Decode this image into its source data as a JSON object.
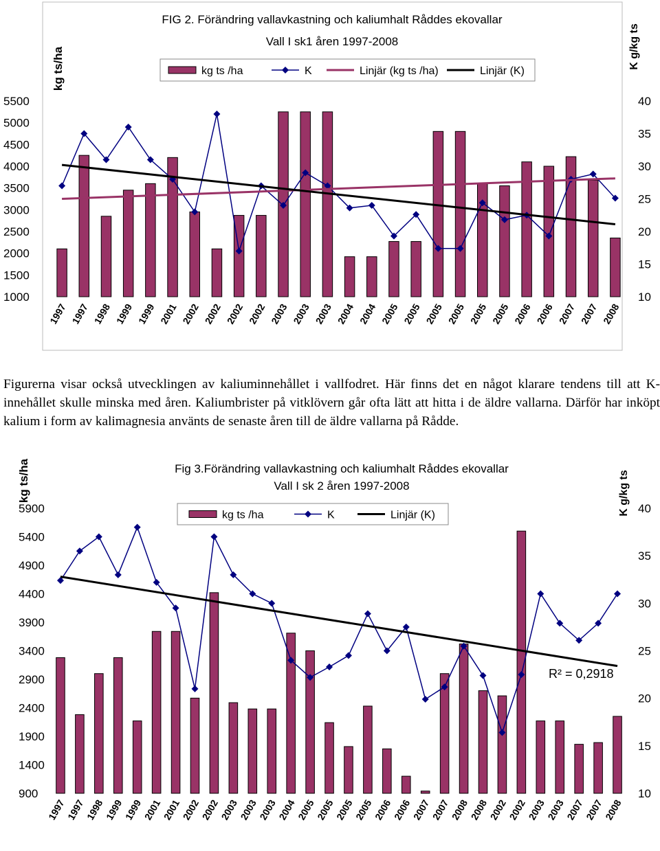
{
  "chart_data": [
    {
      "type": "bar",
      "title": "FIG 2. Förändring vallavkastning och kaliumhalt Råddes ekovallar",
      "subtitle": "Vall I sk1 åren 1997-2008",
      "y_label": "kg ts/ha",
      "y2_label": "K g/kg ts",
      "legend": "top",
      "categories": [
        "1997",
        "1997",
        "1998",
        "1999",
        "1999",
        "2001",
        "2002",
        "2002",
        "2002",
        "2002",
        "2003",
        "2003",
        "2003",
        "2004",
        "2004",
        "2005",
        "2005",
        "2005",
        "2005",
        "2005",
        "2005",
        "2006",
        "2006",
        "2007",
        "2007",
        "2008"
      ],
      "series": [
        {
          "name": "kg ts /ha",
          "color": "#993366",
          "values": [
            2100,
            4250,
            2850,
            3450,
            3600,
            4200,
            2950,
            2100,
            2870,
            2870,
            5250,
            5250,
            5250,
            1920,
            1920,
            2270,
            2270,
            4800,
            4800,
            3600,
            3550,
            4100,
            4000,
            4220,
            3680,
            2350
          ]
        },
        {
          "name": "K",
          "color": "#000080",
          "axis": "y2",
          "marker": "diamond",
          "values": [
            27,
            35,
            31,
            36,
            31,
            28,
            23,
            38,
            17,
            27,
            24,
            29,
            27,
            23.6,
            24,
            19.3,
            22.6,
            17.4,
            17.4,
            24.4,
            21.8,
            22.5,
            19.3,
            28,
            28.8,
            25.1
          ]
        }
      ],
      "trendlines": [
        {
          "name": "Linjär (kg ts /ha)",
          "color": "#993366",
          "values": [
            3250,
            3720
          ]
        },
        {
          "name": "Linjär (K)",
          "color": "#000000",
          "axis": "y2",
          "values": [
            30.2,
            21.1
          ]
        }
      ],
      "ylim": [
        1000,
        5500
      ],
      "yticks": [
        1000,
        1500,
        2000,
        2500,
        3000,
        3500,
        4000,
        4500,
        5000,
        5500
      ],
      "y2lim": [
        10,
        40
      ],
      "y2ticks": [
        10,
        15,
        20,
        25,
        30,
        35,
        40
      ]
    },
    {
      "type": "bar",
      "title": "Fig 3.Förändring vallavkastning och kaliumhalt Råddes ekovallar",
      "subtitle": "Vall I sk 2 åren 1997-2008",
      "y_label": "kg ts/ha",
      "y2_label": "K g/kg ts",
      "legend": "top",
      "annotation": "R² = 0,2918",
      "categories": [
        "1997",
        "1997",
        "1998",
        "1999",
        "1999",
        "2001",
        "2001",
        "2002",
        "2002",
        "2003",
        "2003",
        "2003",
        "2004",
        "2005",
        "2005",
        "2005",
        "2005",
        "2006",
        "2006",
        "2007",
        "2007",
        "2008",
        "2008",
        "2002",
        "2002",
        "2003",
        "2003",
        "2007",
        "2007",
        "2008"
      ],
      "series": [
        {
          "name": "kg ts /ha",
          "color": "#993366",
          "values": [
            3280,
            2280,
            3000,
            3280,
            2170,
            3740,
            3740,
            2570,
            4420,
            2490,
            2380,
            2380,
            3710,
            3400,
            2140,
            1720,
            2430,
            1680,
            1200,
            940,
            3000,
            3520,
            2700,
            2610,
            5500,
            2170,
            2170,
            1760,
            1790,
            2250
          ]
        },
        {
          "name": "K",
          "color": "#000080",
          "axis": "y2",
          "marker": "diamond",
          "values": [
            32.4,
            35.5,
            37,
            33,
            38,
            32.2,
            29.5,
            21,
            37,
            33,
            31,
            30,
            24,
            22.2,
            23.3,
            24.5,
            28.9,
            25,
            27.5,
            19.9,
            21.2,
            25.5,
            22.4,
            16.4,
            22.5,
            31,
            27.9,
            26.1,
            27.9,
            31
          ]
        }
      ],
      "trendlines": [
        {
          "name": "Linjär (K)",
          "color": "#000000",
          "axis": "y2",
          "values": [
            32.8,
            23.4
          ]
        }
      ],
      "ylim": [
        900,
        5900
      ],
      "yticks": [
        900,
        1400,
        1900,
        2400,
        2900,
        3400,
        3900,
        4400,
        4900,
        5400,
        5900
      ],
      "y2lim": [
        10,
        40
      ],
      "y2ticks": [
        10,
        15,
        20,
        25,
        30,
        35,
        40
      ]
    }
  ],
  "paragraph": "Figurerna visar också utvecklingen av kaliuminnehållet i vallfodret. Här finns det en något klarare tendens till att K- innehållet skulle minska med åren. Kaliumbrister på vitklövern går ofta lätt att hitta i de äldre vallarna. Därför har inköpt kalium i form av kalimagnesia använts de senaste åren till de äldre vallarna på Rådde."
}
